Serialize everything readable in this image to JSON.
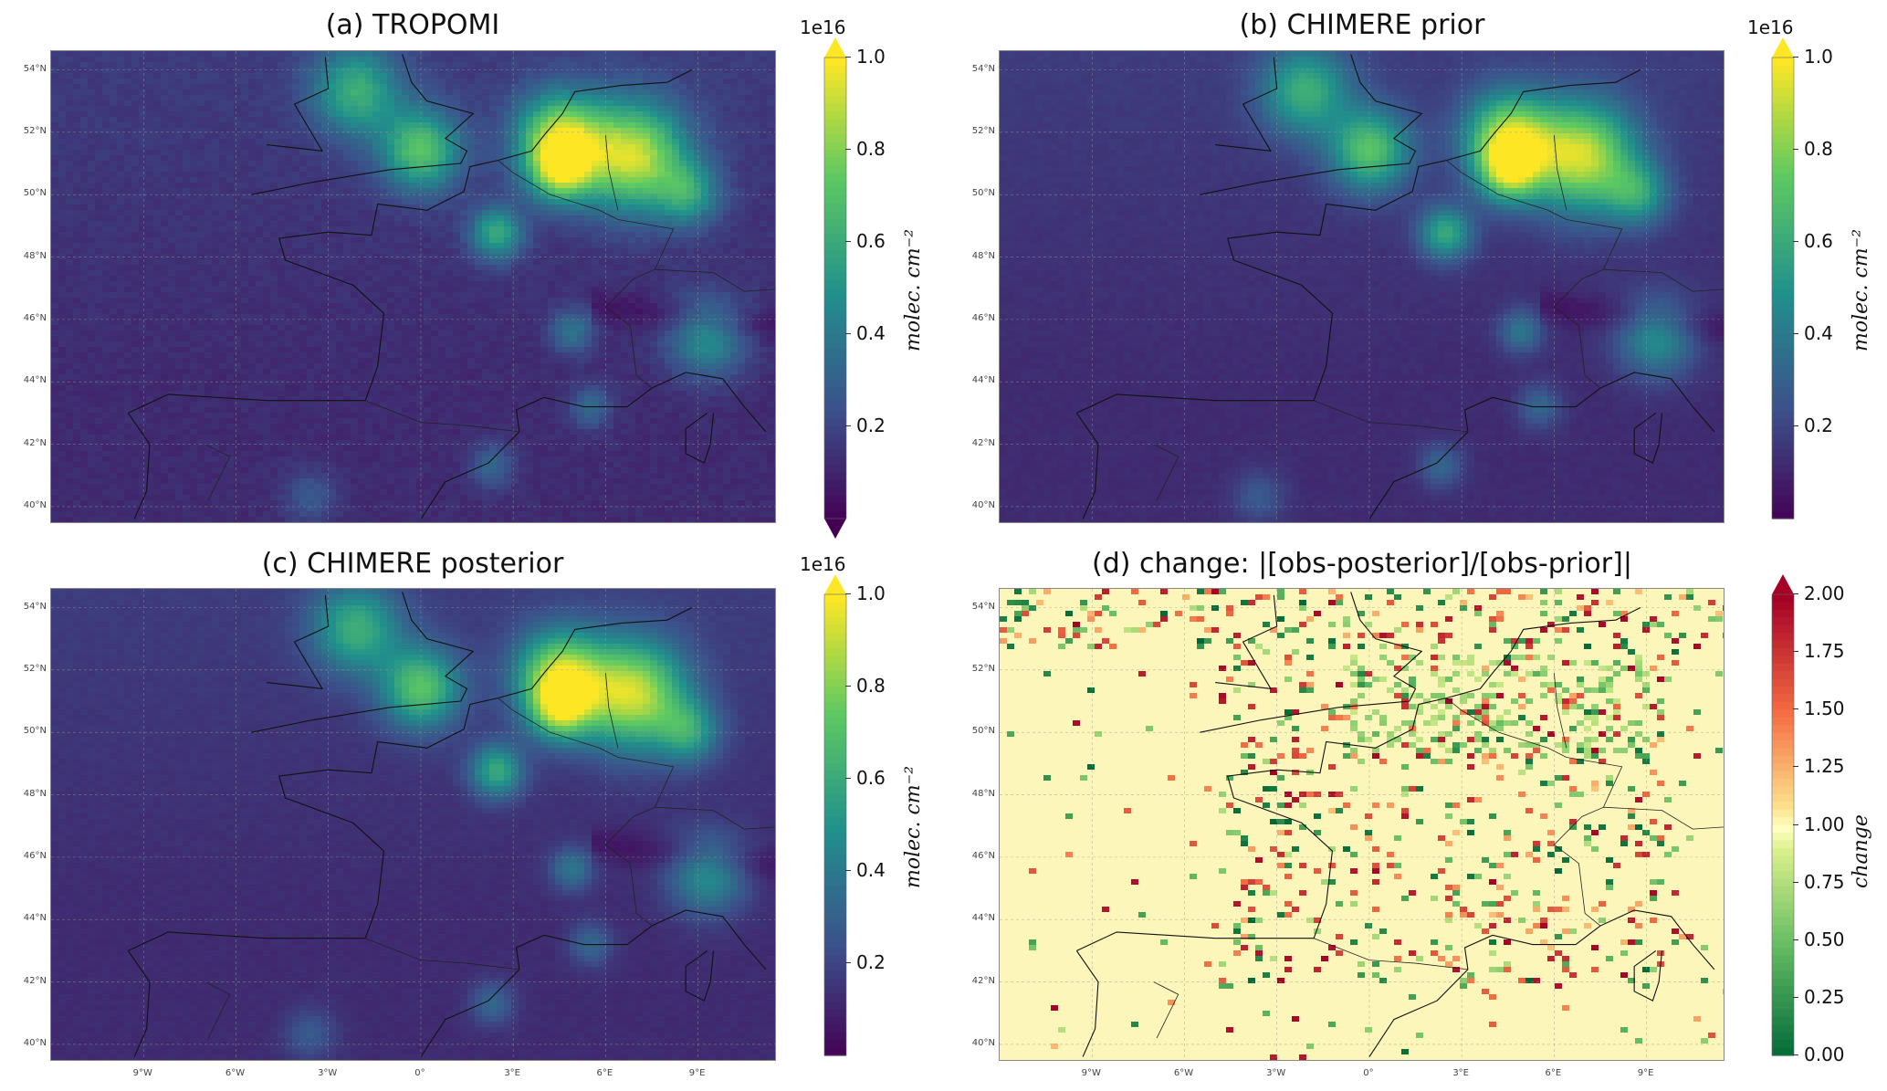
{
  "chart_data": [
    {
      "type": "heatmap",
      "title": "(a) TROPOMI",
      "colormap": "viridis",
      "colorbar": {
        "ticks": [
          0.2,
          0.4,
          0.6,
          0.8,
          1.0
        ],
        "tick_labels": [
          "0.2",
          "0.4",
          "0.6",
          "0.8",
          "1.0"
        ],
        "range": [
          0.0,
          1.0
        ],
        "exponent_label": "1e16",
        "label": "molec. cm⁻²",
        "extend": "both"
      },
      "lat_ticks": [
        "54°N",
        "52°N",
        "50°N",
        "48°N",
        "46°N",
        "44°N",
        "42°N",
        "40°N"
      ],
      "lon_ticks": [],
      "grid": true
    },
    {
      "type": "heatmap",
      "title": "(b) CHIMERE prior",
      "colormap": "viridis",
      "colorbar": {
        "ticks": [
          0.2,
          0.4,
          0.6,
          0.8,
          1.0
        ],
        "tick_labels": [
          "0.2",
          "0.4",
          "0.6",
          "0.8",
          "1.0"
        ],
        "range": [
          0.0,
          1.0
        ],
        "exponent_label": "1e16",
        "label": "molec. cm⁻²",
        "extend": "max"
      },
      "lat_ticks": [
        "54°N",
        "52°N",
        "50°N",
        "48°N",
        "46°N",
        "44°N",
        "42°N",
        "40°N"
      ],
      "lon_ticks": [],
      "grid": true
    },
    {
      "type": "heatmap",
      "title": "(c) CHIMERE posterior",
      "colormap": "viridis",
      "colorbar": {
        "ticks": [
          0.2,
          0.4,
          0.6,
          0.8,
          1.0
        ],
        "tick_labels": [
          "0.2",
          "0.4",
          "0.6",
          "0.8",
          "1.0"
        ],
        "range": [
          0.0,
          1.0
        ],
        "exponent_label": "1e16",
        "label": "molec. cm⁻²",
        "extend": "max"
      },
      "lat_ticks": [
        "54°N",
        "52°N",
        "50°N",
        "48°N",
        "46°N",
        "44°N",
        "42°N",
        "40°N"
      ],
      "lon_ticks": [
        "9°W",
        "6°W",
        "3°W",
        "0°",
        "3°E",
        "6°E",
        "9°E"
      ],
      "grid": true
    },
    {
      "type": "heatmap",
      "title": "(d) change: |[obs-posterior]/[obs-prior]|",
      "colormap": "RdYlGn_r",
      "colorbar": {
        "ticks": [
          0.0,
          0.25,
          0.5,
          0.75,
          1.0,
          1.25,
          1.5,
          1.75,
          2.0
        ],
        "tick_labels": [
          "0.00",
          "0.25",
          "0.50",
          "0.75",
          "1.00",
          "1.25",
          "1.50",
          "1.75",
          "2.00"
        ],
        "range": [
          0.0,
          2.0
        ],
        "exponent_label": "",
        "label": "change",
        "extend": "max"
      },
      "lat_ticks": [
        "54°N",
        "52°N",
        "50°N",
        "48°N",
        "46°N",
        "44°N",
        "42°N",
        "40°N"
      ],
      "lon_ticks": [
        "9°W",
        "6°W",
        "3°W",
        "0°",
        "3°E",
        "6°E",
        "9°E"
      ],
      "grid": true
    }
  ]
}
